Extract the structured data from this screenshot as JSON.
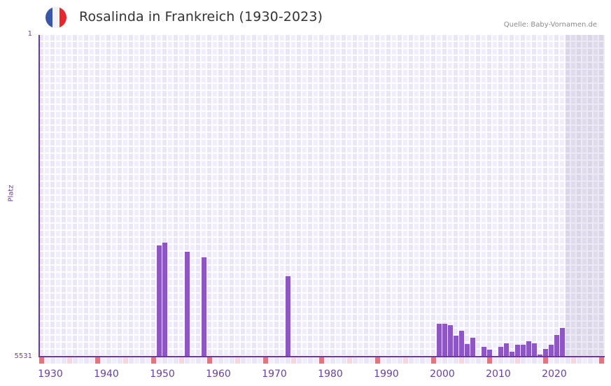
{
  "header": {
    "title": "Rosalinda in Frankreich (1930-2023)",
    "source": "Quelle: Baby-Vornamen.de",
    "flag": {
      "name": "france-flag",
      "colors": [
        "#3a56a6",
        "#f3f3f3",
        "#e8262f"
      ]
    }
  },
  "colors": {
    "bar": "#8e55c7",
    "axis": "#6a3aa0",
    "label": "#6b3fa0",
    "cell_a": "#f1eefb",
    "cell_b": "#ebe6f7",
    "decade_marker": "#e57379",
    "midpoint_marker": "#f5d6df",
    "future_shade": "#e4e1ec"
  },
  "chart_data": {
    "type": "bar",
    "title": "Rosalinda in Frankreich (1930-2023)",
    "xlabel": "",
    "ylabel": "Platz",
    "y_inverted": true,
    "ylim": [
      1,
      5531
    ],
    "xlim": [
      1930,
      2030
    ],
    "x_tick_labels": [
      "1930",
      "1940",
      "1950",
      "1960",
      "1970",
      "1980",
      "1990",
      "2000",
      "2010",
      "2020"
    ],
    "y_tick_labels": [
      "1",
      "5531"
    ],
    "grid": true,
    "future_shaded_from": 2024,
    "categories": [
      1951,
      1952,
      1956,
      1959,
      1974,
      2001,
      2002,
      2003,
      2004,
      2005,
      2006,
      2007,
      2009,
      2010,
      2012,
      2013,
      2014,
      2015,
      2016,
      2017,
      2018,
      2019,
      2020,
      2021,
      2022,
      2023
    ],
    "values": [
      3620,
      3571,
      3727,
      3823,
      4148,
      4965,
      4965,
      4989,
      5169,
      5085,
      5314,
      5205,
      5362,
      5410,
      5362,
      5302,
      5446,
      5326,
      5326,
      5266,
      5302,
      5494,
      5398,
      5326,
      5157,
      5037
    ]
  },
  "axis": {
    "y_top": "1",
    "y_bottom": "5531",
    "y_title": "Platz"
  }
}
